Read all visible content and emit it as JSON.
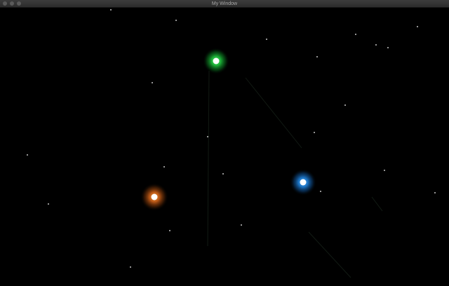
{
  "window": {
    "title": "My Window"
  },
  "colors": {
    "titlebar": "#333333",
    "traffic_light": "#5a5a5a",
    "background": "#000000",
    "star": "#ffffff",
    "trail": "#1d2a1d"
  },
  "orbs": [
    {
      "name": "green-orb",
      "color": "#2ed14a",
      "glow": "#0e8a25"
    },
    {
      "name": "blue-orb",
      "color": "#3fa3ff",
      "glow": "#1666b8"
    },
    {
      "name": "orange-orb",
      "color": "#ff8a2a",
      "glow": "#b35410"
    }
  ]
}
